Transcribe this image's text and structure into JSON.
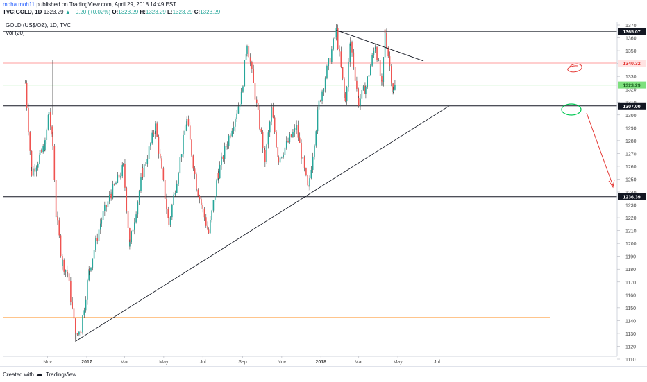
{
  "header": {
    "author": "moha.moh11",
    "published": "published on TradingView.com, April 29, 2018 14:49 EST",
    "symbol": "TVC:GOLD, 1D",
    "last": "1323.29",
    "change_arrow": "▲",
    "change": "+0.20 (+0.02%)",
    "o_label": "O:",
    "o": "1323.29",
    "h_label": "H:",
    "h": "1323.29",
    "l_label": "L:",
    "l": "1323.29",
    "c_label": "C:",
    "c": "1323.29"
  },
  "legend": {
    "title": "GOLD (US$/OZ), 1D, TVC",
    "vol": "Vol (20)"
  },
  "footer": {
    "created_with": "Created with",
    "brand": "TradingView"
  },
  "colors": {
    "up": "#26a69a",
    "down": "#ef5350",
    "last_price": "#00c800",
    "resistance_red": "#ff9e9e",
    "support_orange": "#ffb266"
  },
  "chart_data": {
    "type": "candlestick",
    "title": "GOLD (US$/OZ), 1D, TVC",
    "xlabel": "",
    "ylabel": "",
    "ylim": [
      1110,
      1370
    ],
    "x_ticks": [
      "Nov",
      "2017",
      "Mar",
      "May",
      "Jul",
      "Sep",
      "Nov",
      "2018",
      "Mar",
      "May",
      "Jul"
    ],
    "y_ticks": [
      1110,
      1120,
      1130,
      1140,
      1150,
      1160,
      1170,
      1180,
      1190,
      1200,
      1210,
      1220,
      1230,
      1240,
      1250,
      1260,
      1270,
      1280,
      1290,
      1300,
      1310,
      1320,
      1330,
      1340,
      1350,
      1360,
      1370
    ],
    "price_labels": [
      {
        "value": 1365.07,
        "label": "1365.07",
        "style": "black"
      },
      {
        "value": 1340.32,
        "label": "1340.32",
        "style": "red"
      },
      {
        "value": 1323.29,
        "label": "1323.29",
        "style": "green"
      },
      {
        "value": 1307.0,
        "label": "1307.00",
        "style": "black"
      },
      {
        "value": 1236.39,
        "label": "1236.39",
        "style": "black"
      }
    ],
    "horizontal_lines": [
      {
        "value": 1365.07,
        "color": "black"
      },
      {
        "value": 1340.32,
        "color": "red"
      },
      {
        "value": 1323.29,
        "color": "green"
      },
      {
        "value": 1307.0,
        "color": "black"
      },
      {
        "value": 1236.39,
        "color": "black"
      },
      {
        "value": 1142.5,
        "color": "orange"
      }
    ],
    "trendlines": [
      {
        "name": "rising support",
        "from": [
          "2016-12-15",
          1124
        ],
        "to": [
          "2018-07-20",
          1307
        ]
      },
      {
        "name": "falling resistance",
        "from": [
          "2018-01-25",
          1366
        ],
        "to": [
          "2018-06-10",
          1342
        ]
      }
    ],
    "annotations": [
      "red circle near 1340",
      "green circle near 1307",
      "red arrow pointing down"
    ],
    "price_path": [
      [
        "2016-09-27",
        1325
      ],
      [
        "2016-10-07",
        1255
      ],
      [
        "2016-10-20",
        1268
      ],
      [
        "2016-10-28",
        1277
      ],
      [
        "2016-11-03",
        1303
      ],
      [
        "2016-11-09",
        1276
      ],
      [
        "2016-11-14",
        1223
      ],
      [
        "2016-11-24",
        1185
      ],
      [
        "2016-12-02",
        1177
      ],
      [
        "2016-12-15",
        1127
      ],
      [
        "2016-12-23",
        1134
      ],
      [
        "2017-01-05",
        1180
      ],
      [
        "2017-01-24",
        1219
      ],
      [
        "2017-02-08",
        1239
      ],
      [
        "2017-02-27",
        1259
      ],
      [
        "2017-03-09",
        1199
      ],
      [
        "2017-03-29",
        1255
      ],
      [
        "2017-04-18",
        1291
      ],
      [
        "2017-05-09",
        1215
      ],
      [
        "2017-06-06",
        1296
      ],
      [
        "2017-06-21",
        1245
      ],
      [
        "2017-07-10",
        1208
      ],
      [
        "2017-07-25",
        1255
      ],
      [
        "2017-08-08",
        1279
      ],
      [
        "2017-08-30",
        1315
      ],
      [
        "2017-09-08",
        1357
      ],
      [
        "2017-09-25",
        1300
      ],
      [
        "2017-10-06",
        1265
      ],
      [
        "2017-10-16",
        1304
      ],
      [
        "2017-10-27",
        1266
      ],
      [
        "2017-11-24",
        1290
      ],
      [
        "2017-12-12",
        1241
      ],
      [
        "2017-12-29",
        1309
      ],
      [
        "2018-01-25",
        1365
      ],
      [
        "2018-02-08",
        1310
      ],
      [
        "2018-02-16",
        1357
      ],
      [
        "2018-03-01",
        1310
      ],
      [
        "2018-03-12",
        1322
      ],
      [
        "2018-03-27",
        1355
      ],
      [
        "2018-04-06",
        1322
      ],
      [
        "2018-04-11",
        1365
      ],
      [
        "2018-04-24",
        1318
      ],
      [
        "2018-04-27",
        1323
      ]
    ]
  }
}
